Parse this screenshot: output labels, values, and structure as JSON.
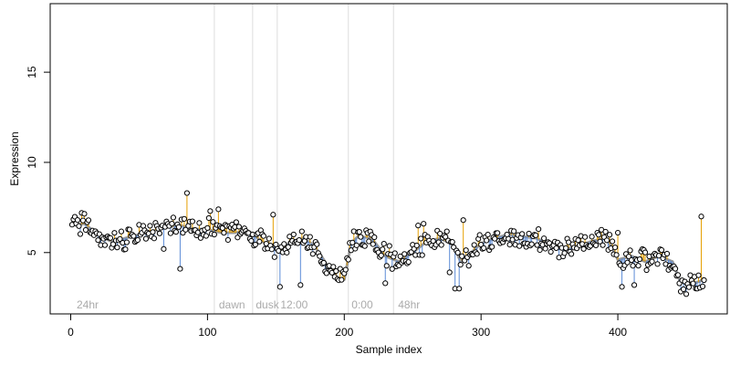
{
  "chart_data": {
    "type": "scatter",
    "title": "",
    "xlabel": "Sample index",
    "ylabel": "Expression",
    "xlim": [
      -15,
      480
    ],
    "ylim": [
      1.6,
      18.8
    ],
    "x_ticks": [
      0,
      100,
      200,
      300,
      400
    ],
    "y_ticks": [
      5,
      10,
      15
    ],
    "grid": false,
    "legend": "none",
    "colors": {
      "point_fill": "#ffffff",
      "point_stroke": "#000000",
      "stem_up": "#e69f00",
      "stem_down": "#5b8bd6",
      "trend": "#999999",
      "divider": "#dddddd",
      "annotation": "#aaaaaa"
    },
    "dividers": [
      105,
      133,
      151,
      203,
      236
    ],
    "annotations": [
      {
        "x": 3,
        "label": "24hr"
      },
      {
        "x": 107,
        "label": "dawn"
      },
      {
        "x": 134,
        "label": "dusk"
      },
      {
        "x": 152,
        "label": "12:00"
      },
      {
        "x": 204,
        "label": "0:00"
      },
      {
        "x": 238,
        "label": "48hr"
      }
    ],
    "series": [
      {
        "trend_knots": [
          [
            1,
            6.5
          ],
          [
            10,
            6.6
          ],
          [
            20,
            6.0
          ],
          [
            30,
            5.6
          ],
          [
            40,
            5.8
          ],
          [
            50,
            6.0
          ],
          [
            60,
            6.2
          ],
          [
            70,
            6.4
          ],
          [
            80,
            6.5
          ],
          [
            90,
            6.3
          ],
          [
            100,
            6.3
          ],
          [
            110,
            6.1
          ],
          [
            120,
            6.1
          ],
          [
            130,
            6.2
          ],
          [
            135,
            5.9
          ],
          [
            140,
            5.6
          ],
          [
            150,
            5.3
          ],
          [
            155,
            5.0
          ],
          [
            160,
            5.6
          ],
          [
            170,
            5.8
          ],
          [
            178,
            5.4
          ],
          [
            185,
            4.6
          ],
          [
            190,
            4.0
          ],
          [
            195,
            3.6
          ],
          [
            200,
            3.5
          ],
          [
            205,
            5.5
          ],
          [
            210,
            5.9
          ],
          [
            220,
            5.8
          ],
          [
            230,
            4.8
          ],
          [
            240,
            4.5
          ],
          [
            250,
            5.0
          ],
          [
            260,
            5.6
          ],
          [
            270,
            5.8
          ],
          [
            280,
            5.4
          ],
          [
            285,
            4.5
          ],
          [
            290,
            4.8
          ],
          [
            300,
            5.5
          ],
          [
            310,
            5.8
          ],
          [
            320,
            6.0
          ],
          [
            330,
            5.9
          ],
          [
            340,
            5.8
          ],
          [
            350,
            5.5
          ],
          [
            360,
            5.2
          ],
          [
            370,
            5.3
          ],
          [
            380,
            5.6
          ],
          [
            390,
            5.8
          ],
          [
            395,
            5.4
          ],
          [
            400,
            4.6
          ],
          [
            410,
            4.8
          ],
          [
            420,
            4.5
          ],
          [
            430,
            4.8
          ],
          [
            440,
            4.5
          ],
          [
            445,
            3.5
          ],
          [
            450,
            3.2
          ],
          [
            460,
            3.4
          ],
          [
            463,
            3.6
          ]
        ],
        "spikes": [
          {
            "x": 8,
            "y": 7.2
          },
          {
            "x": 68,
            "y": 5.2
          },
          {
            "x": 80,
            "y": 4.1
          },
          {
            "x": 85,
            "y": 8.3
          },
          {
            "x": 102,
            "y": 7.3
          },
          {
            "x": 108,
            "y": 7.4
          },
          {
            "x": 148,
            "y": 7.1
          },
          {
            "x": 153,
            "y": 3.1
          },
          {
            "x": 168,
            "y": 3.2
          },
          {
            "x": 230,
            "y": 3.3
          },
          {
            "x": 254,
            "y": 6.5
          },
          {
            "x": 258,
            "y": 6.6
          },
          {
            "x": 277,
            "y": 3.9
          },
          {
            "x": 281,
            "y": 3.0
          },
          {
            "x": 284,
            "y": 3.0
          },
          {
            "x": 287,
            "y": 6.8
          },
          {
            "x": 342,
            "y": 6.3
          },
          {
            "x": 400,
            "y": 6.1
          },
          {
            "x": 403,
            "y": 3.1
          },
          {
            "x": 412,
            "y": 3.2
          },
          {
            "x": 458,
            "y": 3.0
          },
          {
            "x": 461,
            "y": 7.0
          }
        ],
        "n_points": 463
      }
    ]
  }
}
